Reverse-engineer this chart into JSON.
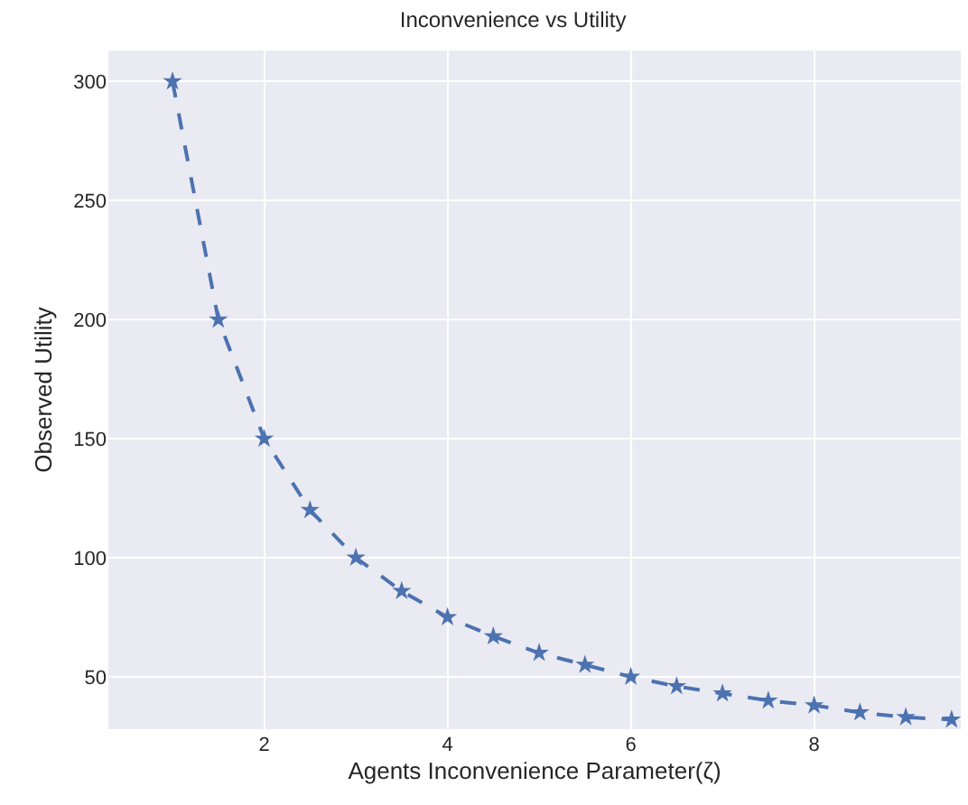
{
  "chart_data": {
    "type": "line",
    "title": "Inconvenience vs Utility",
    "xlabel": "Agents Inconvenience Parameter(ζ)",
    "ylabel": "Observed Utility",
    "x": [
      1,
      1.5,
      2,
      2.5,
      3,
      3.5,
      4,
      4.5,
      5,
      5.5,
      6,
      6.5,
      7,
      7.5,
      8,
      8.5,
      9,
      9.5
    ],
    "series": [
      {
        "color": "#4c72b0",
        "values": [
          300,
          200,
          150,
          120,
          100,
          86,
          75,
          67,
          60,
          55,
          50,
          46,
          43,
          40,
          38,
          35,
          33,
          32
        ]
      }
    ],
    "xlim": [
      0.3,
      9.6
    ],
    "xticks": [
      2,
      4,
      6,
      8
    ],
    "ylim": [
      28,
      313
    ],
    "yticks": [
      50,
      100,
      150,
      200,
      250,
      300
    ],
    "grid": true,
    "marker": "star",
    "line_style": "dashed",
    "legend": false
  }
}
